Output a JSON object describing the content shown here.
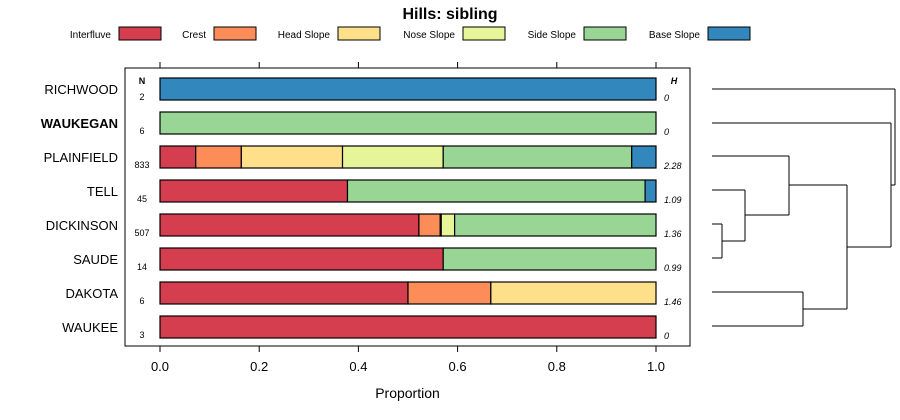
{
  "chart_data": {
    "type": "bar",
    "subtype": "stacked-horizontal-proportion",
    "title": "Hills: sibling",
    "xlabel": "Proportion",
    "ylabel": "",
    "xlim": [
      0,
      1
    ],
    "xticks": [
      {
        "value": 0.0,
        "label": "0.0"
      },
      {
        "value": 0.2,
        "label": "0.2"
      },
      {
        "value": 0.4,
        "label": "0.4"
      },
      {
        "value": 0.6,
        "label": "0.6"
      },
      {
        "value": 0.8,
        "label": "0.8"
      },
      {
        "value": 1.0,
        "label": "1.0"
      }
    ],
    "legend_position": "top",
    "n_header": "N",
    "h_header": "H",
    "series": [
      {
        "name": "Interfluve",
        "color": "#D53E4F"
      },
      {
        "name": "Crest",
        "color": "#FC8D59"
      },
      {
        "name": "Head Slope",
        "color": "#FEE08B"
      },
      {
        "name": "Nose Slope",
        "color": "#E6F598"
      },
      {
        "name": "Side Slope",
        "color": "#99D594"
      },
      {
        "name": "Base Slope",
        "color": "#3288BD"
      }
    ],
    "rows": [
      {
        "name": "RICHWOOD",
        "bold": false,
        "n": "2",
        "h": "0",
        "values": [
          0,
          0,
          0,
          0,
          0,
          1.0
        ]
      },
      {
        "name": "WAUKEGAN",
        "bold": true,
        "n": "6",
        "h": "0",
        "values": [
          0,
          0,
          0,
          0,
          1.0,
          0
        ]
      },
      {
        "name": "PLAINFIELD",
        "bold": false,
        "n": "833",
        "h": "2.28",
        "values": [
          0.072,
          0.092,
          0.204,
          0.203,
          0.38,
          0.049
        ]
      },
      {
        "name": "TELL",
        "bold": false,
        "n": "45",
        "h": "1.09",
        "values": [
          0.378,
          0,
          0,
          0,
          0.6,
          0.022
        ]
      },
      {
        "name": "DICKINSON",
        "bold": false,
        "n": "507",
        "h": "1.36",
        "values": [
          0.522,
          0.043,
          0.002,
          0.027,
          0.406,
          0
        ]
      },
      {
        "name": "SAUDE",
        "bold": false,
        "n": "14",
        "h": "0.99",
        "values": [
          0.571,
          0,
          0,
          0,
          0.429,
          0
        ]
      },
      {
        "name": "DAKOTA",
        "bold": false,
        "n": "6",
        "h": "1.46",
        "values": [
          0.5,
          0.167,
          0.333,
          0,
          0,
          0
        ]
      },
      {
        "name": "WAUKEE",
        "bold": false,
        "n": "3",
        "h": "0",
        "values": [
          1.0,
          0,
          0,
          0,
          0,
          0
        ]
      }
    ],
    "dendrogram": {
      "description": "hierarchical clustering of rows",
      "merges": [
        [
          "DICKINSON",
          "SAUDE"
        ],
        [
          "TELL",
          "DICKINSON+SAUDE"
        ],
        [
          "PLAINFIELD",
          "TELL+DICKINSON+SAUDE"
        ],
        [
          "DAKOTA",
          "WAUKEE"
        ],
        [
          "PLAINFIELD+TELL+DICKINSON+SAUDE",
          "DAKOTA+WAUKEE"
        ],
        [
          "WAUKEGAN",
          "rest"
        ],
        [
          "RICHWOOD",
          "rest"
        ]
      ]
    }
  }
}
